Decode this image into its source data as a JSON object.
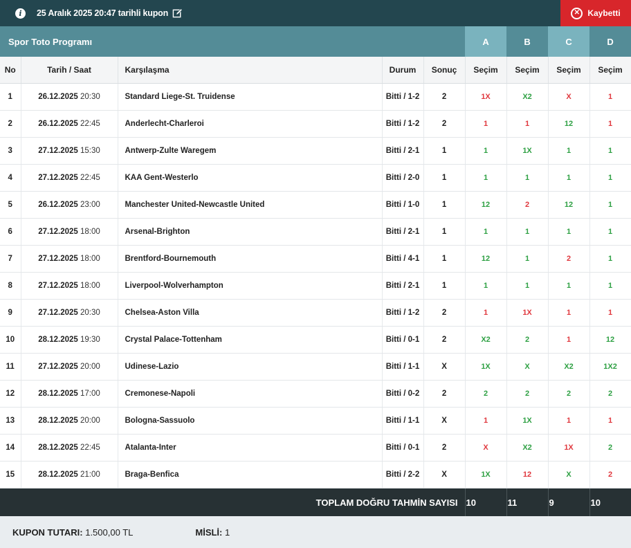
{
  "header": {
    "title": "25 Aralık 2025 20:47 tarihli kupon",
    "status": "Kaybetti"
  },
  "section": {
    "title": "Spor Toto Programı",
    "cols": [
      "A",
      "B",
      "C",
      "D"
    ]
  },
  "columns": {
    "no": "No",
    "date": "Tarih / Saat",
    "match": "Karşılaşma",
    "status": "Durum",
    "result": "Sonuç",
    "pick": "Seçim"
  },
  "rows": [
    {
      "no": "1",
      "date": "26.12.2025",
      "time": "20:30",
      "match": "Standard Liege-St. Truidense",
      "status": "Bitti / 1-2",
      "result": "2",
      "picks": [
        "1X",
        "X2",
        "X",
        "1"
      ],
      "ok": [
        false,
        true,
        false,
        false
      ]
    },
    {
      "no": "2",
      "date": "26.12.2025",
      "time": "22:45",
      "match": "Anderlecht-Charleroi",
      "status": "Bitti / 1-2",
      "result": "2",
      "picks": [
        "1",
        "1",
        "12",
        "1"
      ],
      "ok": [
        false,
        false,
        true,
        false
      ]
    },
    {
      "no": "3",
      "date": "27.12.2025",
      "time": "15:30",
      "match": "Antwerp-Zulte Waregem",
      "status": "Bitti / 2-1",
      "result": "1",
      "picks": [
        "1",
        "1X",
        "1",
        "1"
      ],
      "ok": [
        true,
        true,
        true,
        true
      ]
    },
    {
      "no": "4",
      "date": "27.12.2025",
      "time": "22:45",
      "match": "KAA Gent-Westerlo",
      "status": "Bitti / 2-0",
      "result": "1",
      "picks": [
        "1",
        "1",
        "1",
        "1"
      ],
      "ok": [
        true,
        true,
        true,
        true
      ]
    },
    {
      "no": "5",
      "date": "26.12.2025",
      "time": "23:00",
      "match": "Manchester United-Newcastle United",
      "status": "Bitti / 1-0",
      "result": "1",
      "picks": [
        "12",
        "2",
        "12",
        "1"
      ],
      "ok": [
        true,
        false,
        true,
        true
      ]
    },
    {
      "no": "6",
      "date": "27.12.2025",
      "time": "18:00",
      "match": "Arsenal-Brighton",
      "status": "Bitti / 2-1",
      "result": "1",
      "picks": [
        "1",
        "1",
        "1",
        "1"
      ],
      "ok": [
        true,
        true,
        true,
        true
      ]
    },
    {
      "no": "7",
      "date": "27.12.2025",
      "time": "18:00",
      "match": "Brentford-Bournemouth",
      "status": "Bitti / 4-1",
      "result": "1",
      "picks": [
        "12",
        "1",
        "2",
        "1"
      ],
      "ok": [
        true,
        true,
        false,
        true
      ]
    },
    {
      "no": "8",
      "date": "27.12.2025",
      "time": "18:00",
      "match": "Liverpool-Wolverhampton",
      "status": "Bitti / 2-1",
      "result": "1",
      "picks": [
        "1",
        "1",
        "1",
        "1"
      ],
      "ok": [
        true,
        true,
        true,
        true
      ]
    },
    {
      "no": "9",
      "date": "27.12.2025",
      "time": "20:30",
      "match": "Chelsea-Aston Villa",
      "status": "Bitti / 1-2",
      "result": "2",
      "picks": [
        "1",
        "1X",
        "1",
        "1"
      ],
      "ok": [
        false,
        false,
        false,
        false
      ]
    },
    {
      "no": "10",
      "date": "28.12.2025",
      "time": "19:30",
      "match": "Crystal Palace-Tottenham",
      "status": "Bitti / 0-1",
      "result": "2",
      "picks": [
        "X2",
        "2",
        "1",
        "12"
      ],
      "ok": [
        true,
        true,
        false,
        true
      ]
    },
    {
      "no": "11",
      "date": "27.12.2025",
      "time": "20:00",
      "match": "Udinese-Lazio",
      "status": "Bitti / 1-1",
      "result": "X",
      "picks": [
        "1X",
        "X",
        "X2",
        "1X2"
      ],
      "ok": [
        true,
        true,
        true,
        true
      ]
    },
    {
      "no": "12",
      "date": "28.12.2025",
      "time": "17:00",
      "match": "Cremonese-Napoli",
      "status": "Bitti / 0-2",
      "result": "2",
      "picks": [
        "2",
        "2",
        "2",
        "2"
      ],
      "ok": [
        true,
        true,
        true,
        true
      ]
    },
    {
      "no": "13",
      "date": "28.12.2025",
      "time": "20:00",
      "match": "Bologna-Sassuolo",
      "status": "Bitti / 1-1",
      "result": "X",
      "picks": [
        "1",
        "1X",
        "1",
        "1"
      ],
      "ok": [
        false,
        true,
        false,
        false
      ]
    },
    {
      "no": "14",
      "date": "28.12.2025",
      "time": "22:45",
      "match": "Atalanta-Inter",
      "status": "Bitti / 0-1",
      "result": "2",
      "picks": [
        "X",
        "X2",
        "1X",
        "2"
      ],
      "ok": [
        false,
        true,
        false,
        true
      ]
    },
    {
      "no": "15",
      "date": "28.12.2025",
      "time": "21:00",
      "match": "Braga-Benfica",
      "status": "Bitti / 2-2",
      "result": "X",
      "picks": [
        "1X",
        "12",
        "X",
        "2"
      ],
      "ok": [
        true,
        false,
        true,
        false
      ]
    }
  ],
  "total": {
    "label": "TOPLAM DOĞRU TAHMİN SAYISI",
    "values": [
      "10",
      "11",
      "9",
      "10"
    ]
  },
  "footer": {
    "amount_label": "KUPON TUTARI:",
    "amount_value": "1.500,00 TL",
    "misli_label": "MİSLİ:",
    "misli_value": "1"
  },
  "colors": {
    "ok": "#2ea043",
    "bad": "#e0383e",
    "header_bg": "#23464f",
    "section_bg": "#548c97",
    "lost_bg": "#d8262b"
  }
}
